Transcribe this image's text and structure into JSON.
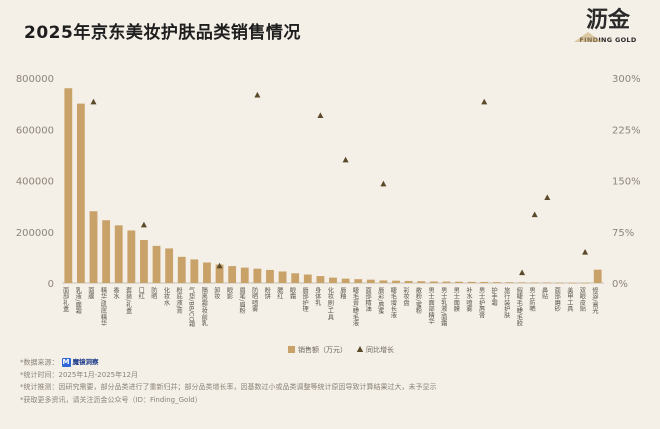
{
  "title": "2025年京东美妆护肤品类销售情况",
  "logo": {
    "mark": "沥金",
    "sub": "FINDING GOLD"
  },
  "colors": {
    "bar": "#c9a26a",
    "marker": "#5a4a2a",
    "background": "#f4efe7",
    "accent": "#c6a56a"
  },
  "footer": {
    "source_label": "*数据来源：",
    "source_brand": "魔镜洞察",
    "period": "*统计时间：2025年1月-2025年12月",
    "note": "*统计推测：因研究需要，部分品类进行了重新归并；部分品类增长率，因基数过小或品类调整等统计原因导致计算结果过大，未予显示",
    "more": "*获取更多资讯，请关注沥金公众号（ID：Finding_Gold）"
  },
  "chart_data": {
    "type": "bar",
    "title": "2025年京东美妆护肤品类销售情况",
    "legend": [
      "销售额（万元）",
      "同比增长"
    ],
    "legend_position": "bottom",
    "y_left": {
      "ticks": [
        "0",
        "200000",
        "400000",
        "600000",
        "800000"
      ],
      "ylim": [
        0,
        800000
      ]
    },
    "y_right": {
      "ticks": [
        "0%",
        "75%",
        "150%",
        "225%",
        "300%"
      ],
      "ylim": [
        0,
        300
      ]
    },
    "grid": false,
    "categories": [
      "面部礼盒",
      "乳液/面霜",
      "面膜",
      "精华/肌底精华",
      "香水",
      "套装/礼盒",
      "口红",
      "防晒",
      "化妆水",
      "粉底液/膏",
      "气垫/BB/CC霜",
      "隔离霜/妆前乳",
      "卸妆",
      "眼影",
      "眉笔/眉粉",
      "防晒喷雾",
      "粉饼",
      "腮红",
      "眼霜",
      "唇部护理",
      "身体乳",
      "化妆刷/工具",
      "唇釉",
      "睫毛膏/睫毛液",
      "面部精油",
      "唇彩/唇蜜",
      "睫毛增长液",
      "彩妆盘",
      "散粉/蜜粉",
      "男士面部精华",
      "男士乳液/面霜",
      "男士面膜",
      "补水喷雾",
      "男士护唇膏",
      "护手霜",
      "旅行装护肤",
      "假睫毛/睫毛胶",
      "男士防晒",
      "鼻贴",
      "面部磨砂",
      "美甲工具",
      "双眼皮贴",
      "修容/高光"
    ],
    "series": [
      {
        "name": "销售额（万元）",
        "values": [
          760000,
          700000,
          280000,
          245000,
          225000,
          205000,
          168000,
          145000,
          135000,
          102000,
          92000,
          80000,
          72000,
          66000,
          60000,
          56000,
          51000,
          45000,
          38000,
          33000,
          27000,
          21000,
          17000,
          15000,
          13000,
          10000,
          9000,
          8000,
          7000,
          6000,
          5500,
          5000,
          4500,
          4000,
          3500,
          3000,
          2500,
          2000,
          1500,
          1000,
          800,
          600,
          52000
        ]
      },
      {
        "name": "同比增长",
        "values": [
          null,
          null,
          265,
          null,
          null,
          null,
          85,
          null,
          null,
          null,
          null,
          null,
          25,
          null,
          null,
          275,
          null,
          null,
          null,
          null,
          245,
          null,
          180,
          null,
          null,
          145,
          null,
          null,
          null,
          null,
          null,
          null,
          null,
          265,
          null,
          null,
          15,
          100,
          125,
          null,
          null,
          45,
          null
        ]
      }
    ]
  }
}
